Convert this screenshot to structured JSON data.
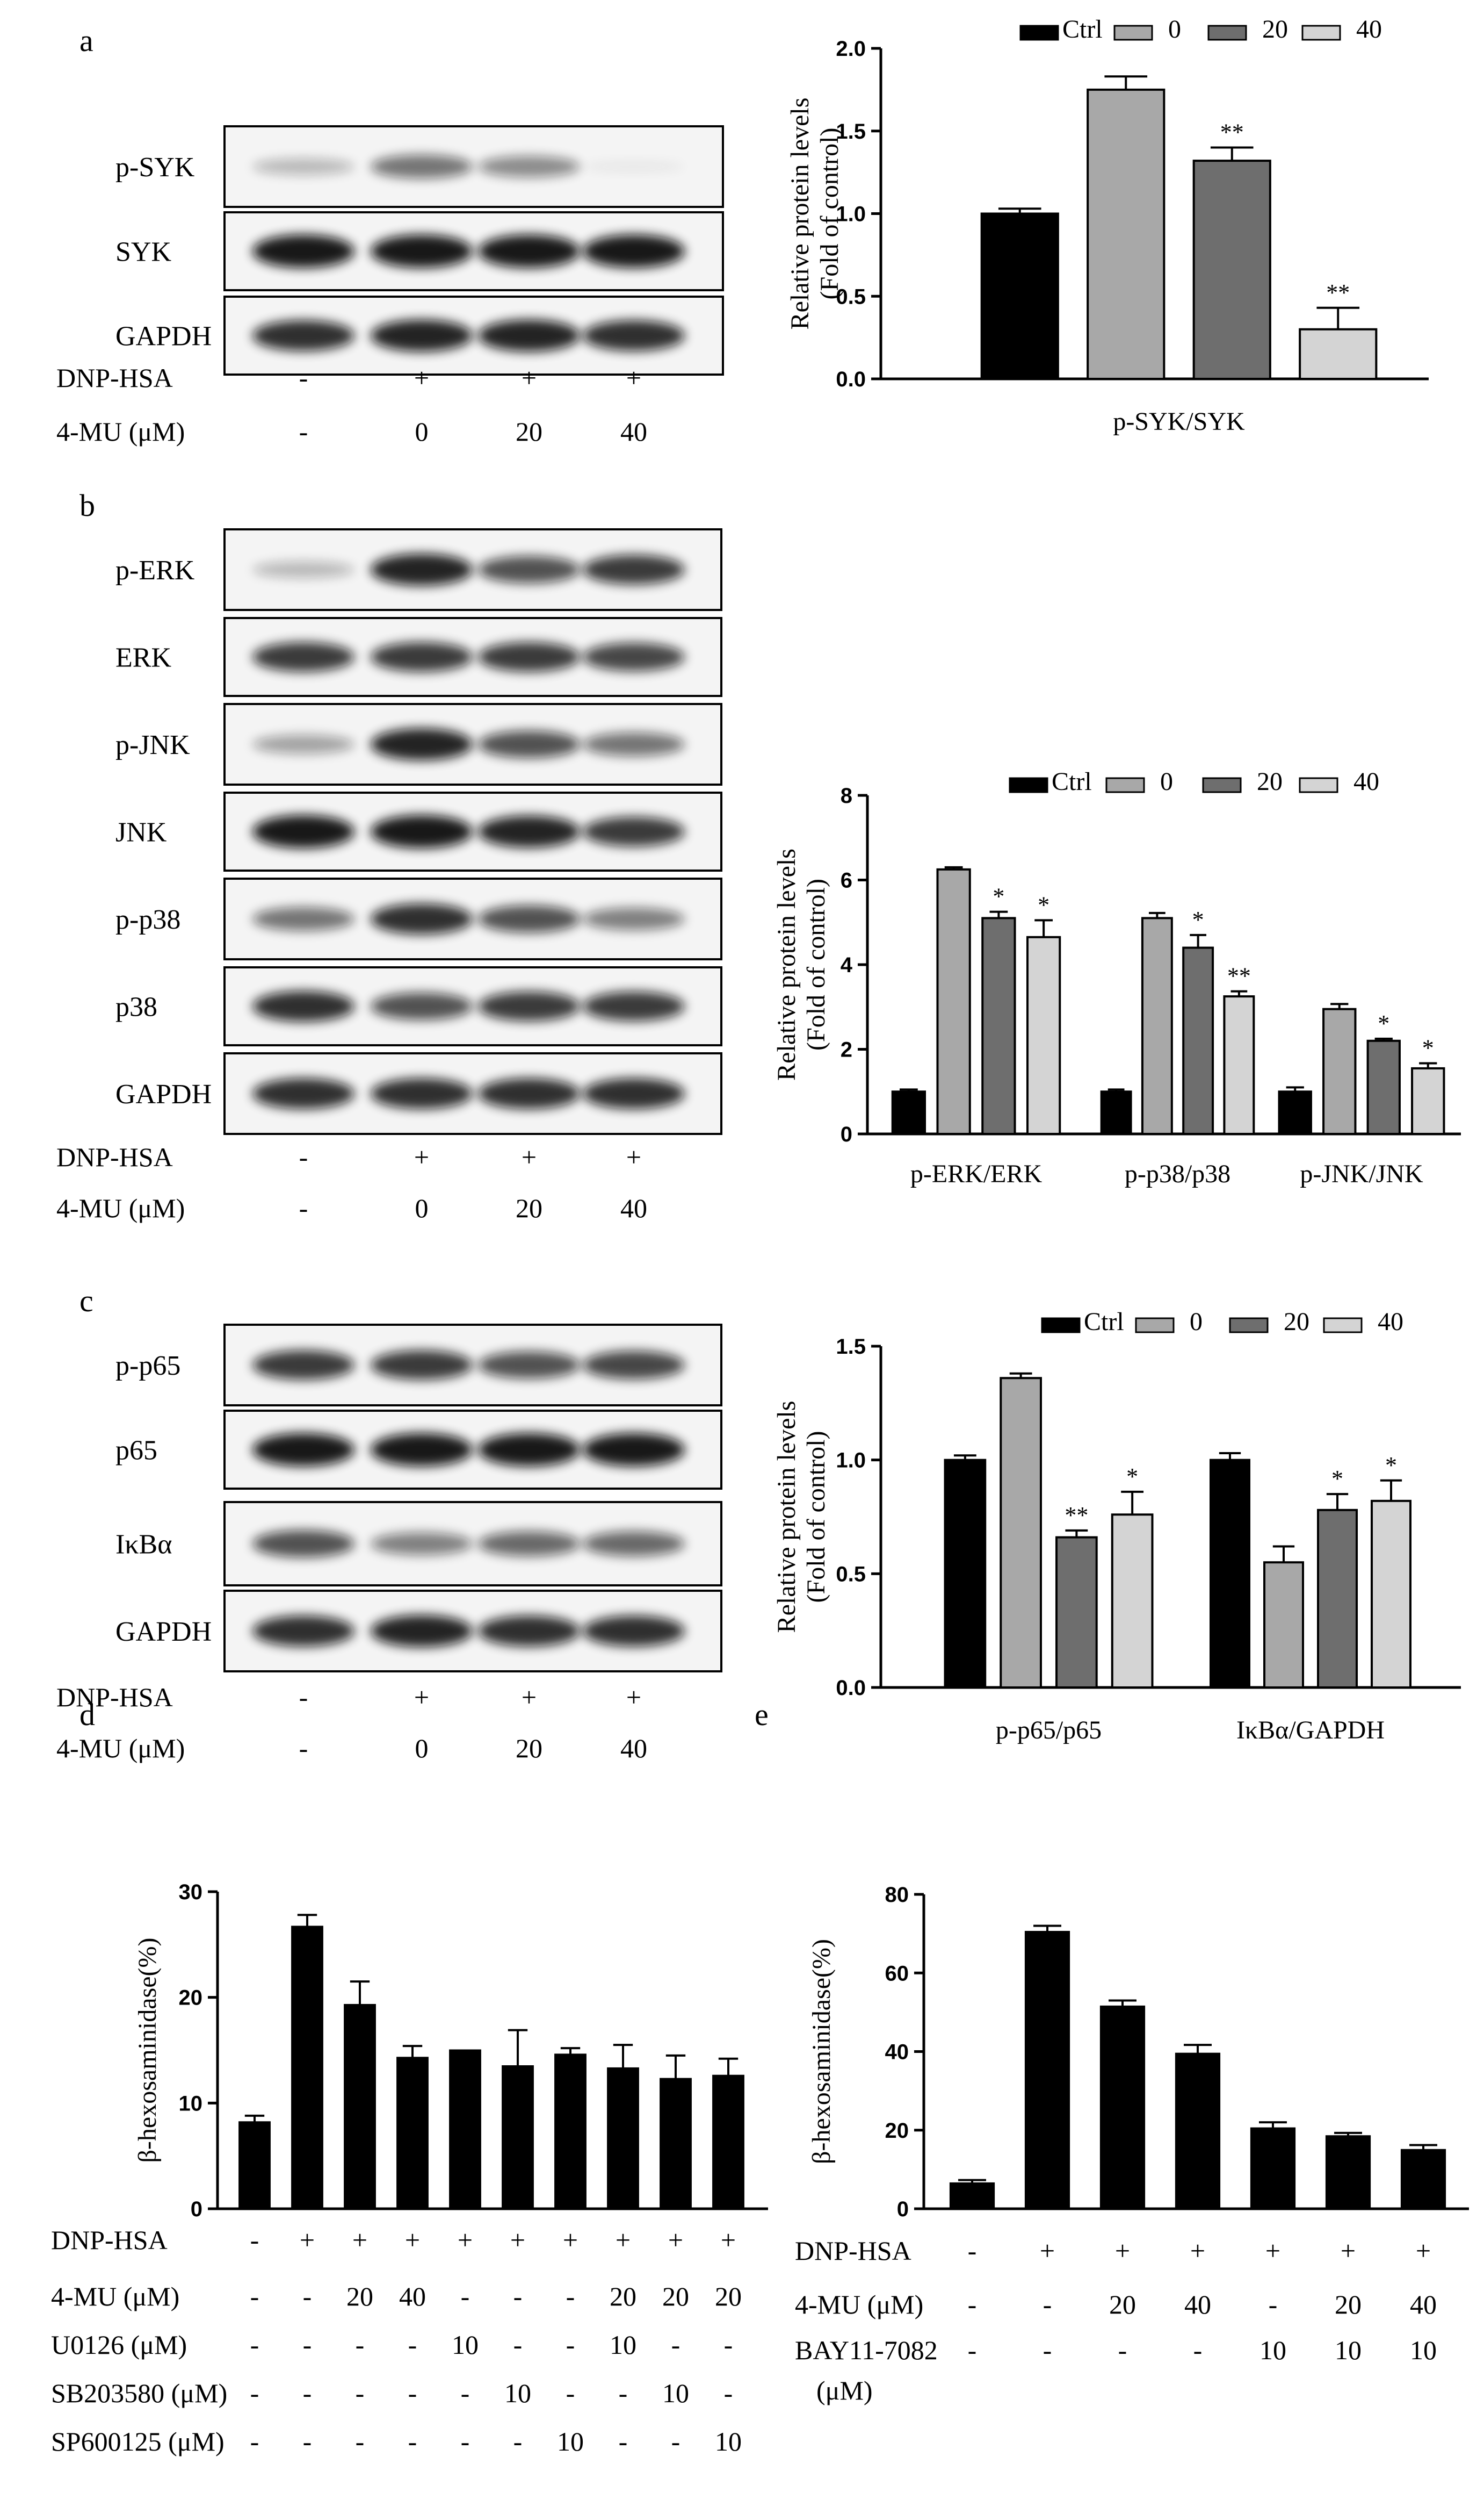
{
  "panels": [
    {
      "letter": "a",
      "blots": [
        {
          "label": "p-SYK",
          "bands": [
            0.25,
            0.55,
            0.45,
            0.05
          ]
        },
        {
          "label": "SYK",
          "bands": [
            0.95,
            0.95,
            0.95,
            0.95
          ]
        },
        {
          "label": "GAPDH",
          "bands": [
            0.85,
            0.9,
            0.9,
            0.85
          ]
        }
      ],
      "conditions": [
        {
          "label": "DNP-HSA",
          "values": [
            "-",
            "+",
            "+",
            "+"
          ]
        },
        {
          "label": "4-MU (μM)",
          "values": [
            "-",
            "0",
            "20",
            "40"
          ]
        }
      ]
    },
    {
      "letter": "b",
      "blots": [
        {
          "label": "p-ERK",
          "bands": [
            0.25,
            0.9,
            0.7,
            0.8
          ]
        },
        {
          "label": "ERK",
          "bands": [
            0.8,
            0.8,
            0.8,
            0.75
          ]
        },
        {
          "label": "p-JNK",
          "bands": [
            0.35,
            0.9,
            0.7,
            0.55
          ]
        },
        {
          "label": "JNK",
          "bands": [
            0.95,
            0.95,
            0.9,
            0.8
          ]
        },
        {
          "label": "p-p38",
          "bands": [
            0.55,
            0.85,
            0.7,
            0.5
          ]
        },
        {
          "label": "p38",
          "bands": [
            0.85,
            0.7,
            0.8,
            0.8
          ]
        },
        {
          "label": "GAPDH",
          "bands": [
            0.85,
            0.85,
            0.85,
            0.85
          ]
        }
      ],
      "conditions": [
        {
          "label": "DNP-HSA",
          "values": [
            "-",
            "+",
            "+",
            "+"
          ]
        },
        {
          "label": "4-MU (μM)",
          "values": [
            "-",
            "0",
            "20",
            "40"
          ]
        }
      ]
    },
    {
      "letter": "c",
      "blots": [
        {
          "label": "p-p65",
          "bands": [
            0.8,
            0.8,
            0.7,
            0.75
          ]
        },
        {
          "label": "p65",
          "bands": [
            0.95,
            0.95,
            0.95,
            0.95
          ]
        },
        {
          "label": "IκBα",
          "bands": [
            0.7,
            0.5,
            0.6,
            0.6
          ]
        },
        {
          "label": "GAPDH",
          "bands": [
            0.85,
            0.9,
            0.85,
            0.85
          ]
        }
      ],
      "conditions": [
        {
          "label": "DNP-HSA",
          "values": [
            "-",
            "+",
            "+",
            "+"
          ]
        },
        {
          "label": "4-MU (μM)",
          "values": [
            "-",
            "0",
            "20",
            "40"
          ]
        }
      ]
    },
    {
      "letter": "d",
      "conditions": [
        {
          "label": "DNP-HSA",
          "values": [
            "-",
            "+",
            "+",
            "+",
            "+",
            "+",
            "+",
            "+",
            "+",
            "+"
          ]
        },
        {
          "label": "4-MU  (μM)",
          "values": [
            "-",
            "-",
            "20",
            "40",
            "-",
            "-",
            "-",
            "20",
            "20",
            "20"
          ]
        },
        {
          "label": "U0126 (μM)",
          "values": [
            "-",
            "-",
            "-",
            "-",
            "10",
            "-",
            "-",
            "10",
            "-",
            "-"
          ]
        },
        {
          "label": "SB203580 (μM)",
          "values": [
            "-",
            "-",
            "-",
            "-",
            "-",
            "10",
            "-",
            "-",
            "10",
            "-"
          ]
        },
        {
          "label": "SP600125 (μM)",
          "values": [
            "-",
            "-",
            "-",
            "-",
            "-",
            "-",
            "10",
            "-",
            "-",
            "10"
          ]
        }
      ]
    },
    {
      "letter": "e",
      "conditions": [
        {
          "label": "DNP-HSA",
          "values": [
            "-",
            "+",
            "+",
            "+",
            "+",
            "+",
            "+"
          ]
        },
        {
          "label": "4-MU  (μM)",
          "values": [
            "-",
            "-",
            "20",
            "40",
            "-",
            "20",
            "40"
          ]
        },
        {
          "label": "BAY11-7082",
          "label2": "(μM)",
          "values": [
            "-",
            "-",
            "-",
            "-",
            "10",
            "10",
            "10"
          ]
        }
      ]
    }
  ],
  "chart_data": [
    {
      "id": "a",
      "type": "bar",
      "ylabel": "Relative protein levels",
      "ylabel2": "(Fold of control)",
      "ylim": [
        0,
        2.0
      ],
      "yticks": [
        "0.0",
        "0.5",
        "1.0",
        "1.5",
        "2.0"
      ],
      "legend": [
        "Ctrl",
        "0",
        "20",
        "40"
      ],
      "groups": [
        {
          "label": "p-SYK/SYK",
          "values": [
            1.0,
            1.75,
            1.32,
            0.3
          ],
          "errors": [
            0.03,
            0.08,
            0.08,
            0.13
          ],
          "stars": [
            "",
            "",
            "**",
            "**"
          ]
        }
      ]
    },
    {
      "id": "b",
      "type": "bar",
      "ylabel": "Relative protein levels",
      "ylabel2": "(Fold of control)",
      "ylim": [
        0,
        8
      ],
      "yticks": [
        "0",
        "2",
        "4",
        "6",
        "8"
      ],
      "legend": [
        "Ctrl",
        "0",
        "20",
        "40"
      ],
      "groups": [
        {
          "label": "p-ERK/ERK",
          "values": [
            1.0,
            6.25,
            5.1,
            4.65
          ],
          "errors": [
            0.05,
            0.05,
            0.15,
            0.4
          ],
          "stars": [
            "",
            "",
            "*",
            "*"
          ]
        },
        {
          "label": "p-p38/p38",
          "values": [
            1.0,
            5.1,
            4.4,
            3.25
          ],
          "errors": [
            0.05,
            0.12,
            0.3,
            0.12
          ],
          "stars": [
            "",
            "",
            "*",
            "**"
          ]
        },
        {
          "label": "p-JNK/JNK",
          "values": [
            1.0,
            2.95,
            2.2,
            1.55
          ],
          "errors": [
            0.1,
            0.12,
            0.05,
            0.12
          ],
          "stars": [
            "",
            "",
            "*",
            "*"
          ]
        }
      ]
    },
    {
      "id": "c",
      "type": "bar",
      "ylabel": "Relative protein levels",
      "ylabel2": "(Fold of control)",
      "ylim": [
        0,
        1.5
      ],
      "yticks": [
        "0.0",
        "0.5",
        "1.0",
        "1.5"
      ],
      "legend": [
        "Ctrl",
        "0",
        "20",
        "40"
      ],
      "groups": [
        {
          "label": "p-p65/p65",
          "values": [
            1.0,
            1.36,
            0.66,
            0.76
          ],
          "errors": [
            0.02,
            0.02,
            0.03,
            0.1
          ],
          "stars": [
            "",
            "",
            "**",
            "*"
          ]
        },
        {
          "label": "IκBα/GAPDH",
          "values": [
            1.0,
            0.55,
            0.78,
            0.82
          ],
          "errors": [
            0.03,
            0.07,
            0.07,
            0.09
          ],
          "stars": [
            "",
            "",
            "*",
            "*"
          ]
        }
      ]
    },
    {
      "id": "d",
      "type": "bar",
      "ylabel": "β-hexosaminidase(%)",
      "ylim": [
        0,
        30
      ],
      "yticks": [
        "0",
        "10",
        "20",
        "30"
      ],
      "values": [
        8.2,
        26.7,
        19.3,
        14.3,
        15.0,
        13.5,
        14.6,
        13.3,
        12.3,
        12.6
      ],
      "errors": [
        0.6,
        1.1,
        2.2,
        1.1,
        0.0,
        3.4,
        0.6,
        2.2,
        2.2,
        1.6
      ]
    },
    {
      "id": "e",
      "type": "bar",
      "ylabel": "β-hexosaminidase(%)",
      "ylim": [
        0,
        80
      ],
      "yticks": [
        "0",
        "20",
        "40",
        "60",
        "80"
      ],
      "values": [
        6.5,
        70.5,
        51.5,
        39.5,
        20.5,
        18.5,
        15.0
      ],
      "errors": [
        0.8,
        1.5,
        1.5,
        2.2,
        1.5,
        0.8,
        1.2
      ]
    }
  ],
  "colors": {
    "ctrl": "#000000",
    "dose0": "#a8a8a8",
    "dose20": "#6e6e6e",
    "dose40": "#d4d4d4",
    "blot_bg": "#f4f4f4",
    "band": "#111111"
  }
}
